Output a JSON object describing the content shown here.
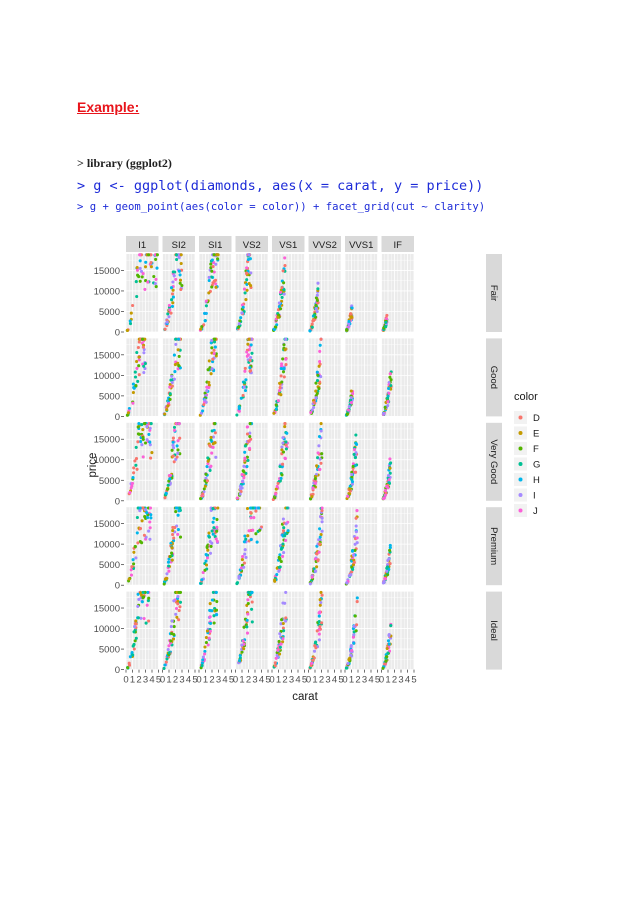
{
  "document": {
    "heading": "Example:",
    "code_lines": [
      "> library (ggplot2)",
      "> g <- ggplot(diamonds, aes(x = carat, y = price))",
      "> g + geom_point(aes(color = color)) + facet_grid(cut ~ clarity)"
    ]
  },
  "chart_data": {
    "type": "scatter",
    "facet_columns": [
      "I1",
      "SI2",
      "SI1",
      "VS2",
      "VS1",
      "VVS2",
      "VVS1",
      "IF"
    ],
    "facet_rows": [
      "Fair",
      "Good",
      "Very Good",
      "Premium",
      "Ideal"
    ],
    "xlabel": "carat",
    "ylabel": "price",
    "xlim": [
      0,
      5
    ],
    "ylim": [
      0,
      19000
    ],
    "x_ticks": [
      "0",
      "1",
      "2",
      "3",
      "4",
      "5"
    ],
    "y_ticks": [
      "0",
      "5000",
      "10000",
      "15000"
    ],
    "grid": true,
    "legend": {
      "title": "color",
      "placement": "right",
      "entries": [
        {
          "label": "D",
          "color": "#F8766D"
        },
        {
          "label": "E",
          "color": "#C49A00"
        },
        {
          "label": "F",
          "color": "#53B400"
        },
        {
          "label": "G",
          "color": "#00C094"
        },
        {
          "label": "H",
          "color": "#00B6EB"
        },
        {
          "label": "I",
          "color": "#A58AFF"
        },
        {
          "label": "J",
          "color": "#FB61D7"
        }
      ]
    },
    "approx_max_carat": {
      "Fair": [
        5.0,
        3.0,
        3.0,
        2.4,
        2.0,
        1.5,
        1.1,
        0.9
      ],
      "Good": [
        3.0,
        2.8,
        2.7,
        2.6,
        2.3,
        2.0,
        1.2,
        1.5
      ],
      "Very Good": [
        4.0,
        2.7,
        2.6,
        2.5,
        2.4,
        2.1,
        1.8,
        1.4
      ],
      "Premium": [
        4.0,
        2.9,
        2.9,
        4.0,
        2.5,
        2.1,
        1.9,
        1.4
      ],
      "Ideal": [
        3.5,
        2.8,
        2.8,
        2.6,
        2.2,
        2.1,
        1.9,
        1.5
      ]
    }
  }
}
